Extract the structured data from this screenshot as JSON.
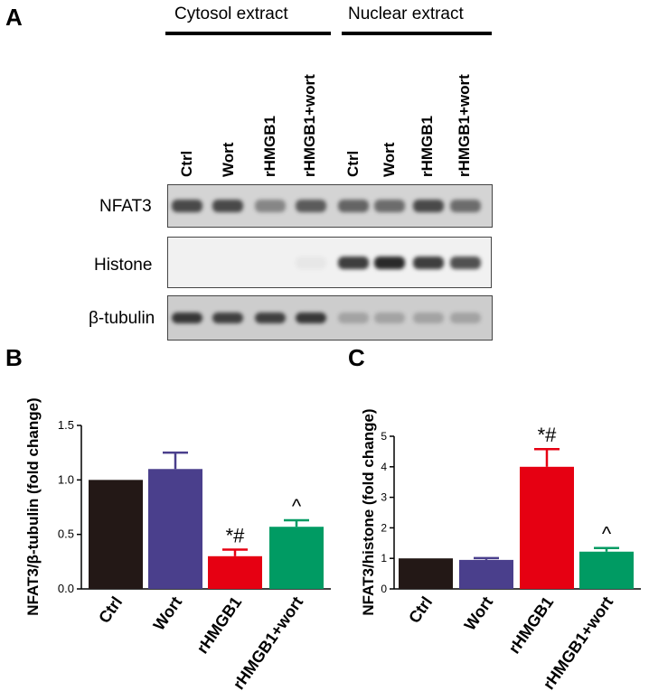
{
  "panels": {
    "a": "A",
    "b": "B",
    "c": "C"
  },
  "blot": {
    "groups": [
      "Cytosol extract",
      "Nuclear extract"
    ],
    "lanes": [
      "Ctrl",
      "Wort",
      "rHMGB1",
      "rHMGB1+wort",
      "Ctrl",
      "Wort",
      "rHMGB1",
      "rHMGB1+wort"
    ],
    "rows": [
      {
        "label": "NFAT3",
        "intensity": [
          0.8,
          0.8,
          0.45,
          0.7,
          0.65,
          0.6,
          0.8,
          0.6
        ]
      },
      {
        "label": "Histone",
        "intensity": [
          0,
          0,
          0,
          0.05,
          0.9,
          1.0,
          0.9,
          0.8
        ]
      },
      {
        "label": "β-tubulin",
        "intensity": [
          0.9,
          0.85,
          0.85,
          0.9,
          0.25,
          0.25,
          0.25,
          0.25
        ]
      }
    ]
  },
  "chart_data": [
    {
      "type": "bar",
      "categories": [
        "Ctrl",
        "Wort",
        "rHMGB1",
        "rHMGB1+wort"
      ],
      "values": [
        1.0,
        1.1,
        0.3,
        0.57
      ],
      "errors": [
        0,
        0.15,
        0.06,
        0.06
      ],
      "colors": [
        "#231816",
        "#4a3f8c",
        "#e60012",
        "#009b63"
      ],
      "annotations": [
        "",
        "",
        "*#",
        "^"
      ],
      "ylabel": "NFAT3/β-tubulin  (fold change)",
      "ylim": [
        0,
        1.5
      ],
      "yticks": [
        "0.0",
        "0.5",
        "1.0",
        "1.5"
      ]
    },
    {
      "type": "bar",
      "categories": [
        "Ctrl",
        "Wort",
        "rHMGB1",
        "rHMGB1+wort"
      ],
      "values": [
        1.0,
        0.95,
        4.0,
        1.22
      ],
      "errors": [
        0,
        0.06,
        0.58,
        0.12
      ],
      "colors": [
        "#231816",
        "#4a3f8c",
        "#e60012",
        "#009b63"
      ],
      "annotations": [
        "",
        "",
        "*#",
        "^"
      ],
      "ylabel": "NFAT3/histone (fold change)",
      "ylim": [
        0,
        5
      ],
      "yticks": [
        "0",
        "1",
        "2",
        "3",
        "4",
        "5"
      ]
    }
  ]
}
